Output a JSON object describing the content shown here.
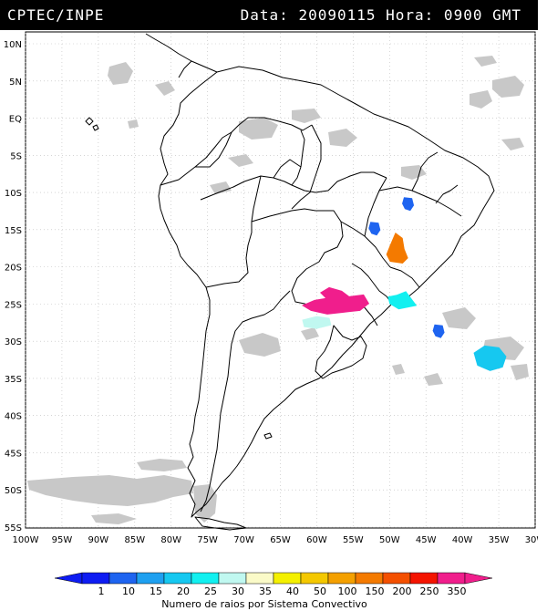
{
  "header": {
    "source": "CPTEC/INPE",
    "info": "Data: 20090115 Hora: 0900 GMT"
  },
  "map": {
    "lat_labels": [
      "10N",
      "5N",
      "EQ",
      "5S",
      "10S",
      "15S",
      "20S",
      "25S",
      "30S",
      "35S",
      "40S",
      "45S",
      "50S",
      "55S"
    ],
    "lon_labels": [
      "100W",
      "95W",
      "90W",
      "85W",
      "80W",
      "75W",
      "70W",
      "65W",
      "60W",
      "55W",
      "50W",
      "45W",
      "40W",
      "35W",
      "30W"
    ],
    "lat_range": [
      10,
      -55
    ],
    "lon_range": [
      -100,
      -30
    ],
    "colors": {
      "cloud": "#c8c8c8",
      "coast": "#000000",
      "frame": "#000000"
    },
    "convective_systems": [
      {
        "lat": -11.5,
        "lon": -47.4,
        "level": "10"
      },
      {
        "lat": -14.8,
        "lon": -52.0,
        "level": "10"
      },
      {
        "lat": -17.6,
        "lon": -49.2,
        "level": "150"
      },
      {
        "lat": -24.2,
        "lon": -57.8,
        "level": "350"
      },
      {
        "lat": -24.5,
        "lon": -48.5,
        "level": "25"
      },
      {
        "lat": -27.6,
        "lon": -60.0,
        "level": "30"
      },
      {
        "lat": -28.6,
        "lon": -43.2,
        "level": "10"
      },
      {
        "lat": -32.3,
        "lon": -36.2,
        "level": "20"
      }
    ]
  },
  "legend": {
    "labels": [
      "1",
      "10",
      "15",
      "20",
      "25",
      "30",
      "35",
      "40",
      "50",
      "100",
      "150",
      "200",
      "250",
      "350"
    ],
    "colors": [
      "#0e1cf2",
      "#1e64f0",
      "#1ea0f0",
      "#16c8f0",
      "#12f0f0",
      "#c0f8f0",
      "#fafac8",
      "#f4f000",
      "#f4c800",
      "#f4a000",
      "#f47a00",
      "#f45000",
      "#f41400",
      "#f01e8c"
    ],
    "title": "Numero de raios por Sistema Convectivo"
  }
}
